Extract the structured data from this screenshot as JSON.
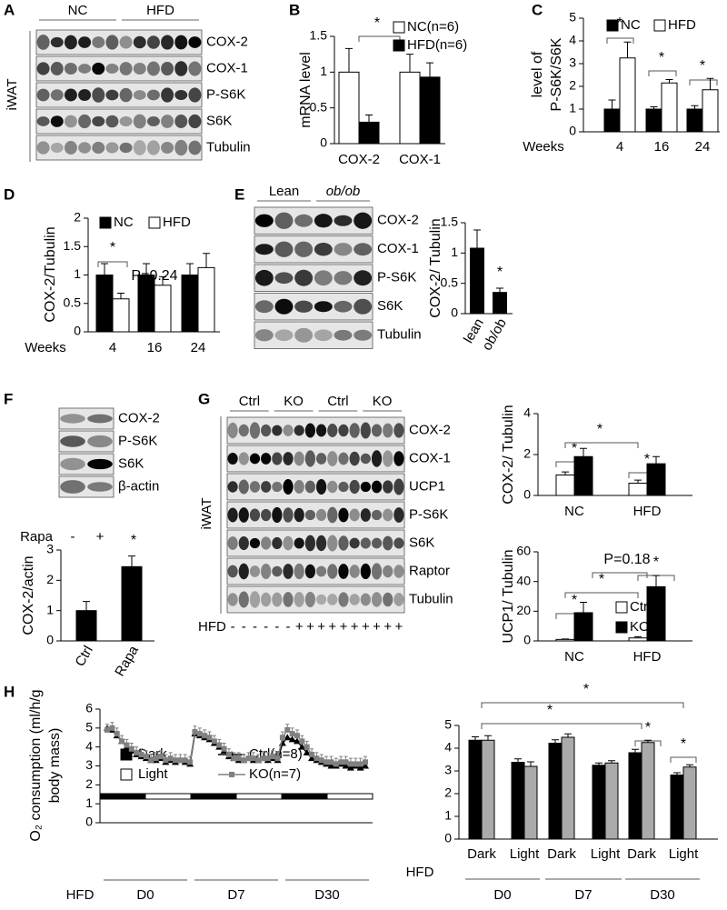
{
  "panel_labels": [
    "A",
    "B",
    "C",
    "D",
    "E",
    "F",
    "G",
    "H"
  ],
  "blots": [
    {
      "group_labels": [
        "NC",
        "HFD"
      ],
      "side_label": "iWAT",
      "rows": [
        "COX-2",
        "COX-1",
        "P-S6K",
        "S6K",
        "Tubulin"
      ]
    },
    {
      "group_labels": [
        "Lean",
        "ob/ob"
      ],
      "rows": [
        "COX-2",
        "COX-1",
        "P-S6K",
        "S6K",
        "Tubulin"
      ]
    },
    {
      "rows": [
        "COX-2",
        "P-S6K",
        "S6K",
        "β-actin"
      ],
      "treatment": "Rapa",
      "lane_signs": [
        "-",
        "+"
      ]
    },
    {
      "group_labels": [
        "Ctrl",
        "KO",
        "Ctrl",
        "KO"
      ],
      "side_label": "iWAT",
      "rows": [
        "COX-2",
        "COX-1",
        "UCP1",
        "P-S6K",
        "S6K",
        "Raptor",
        "Tubulin"
      ],
      "hfd_label": "HFD",
      "hfd_signs": [
        "-",
        "-",
        "-",
        "-",
        "-",
        "-",
        "+",
        "+",
        "+",
        "+",
        "+",
        "+",
        "+",
        "+",
        "+",
        "+"
      ]
    }
  ],
  "chart_data": [
    {
      "type": "bar",
      "ylabel": [
        "mRNA level"
      ],
      "categories": [
        "COX-2",
        "COX-1"
      ],
      "series": [
        {
          "name": "NC(n=6)",
          "color": "#ffffff",
          "values": [
            1.0,
            1.0
          ],
          "errors": [
            0.33,
            0.25
          ]
        },
        {
          "name": "HFD(n=6)",
          "color": "#000000",
          "values": [
            0.3,
            0.93
          ],
          "errors": [
            0.1,
            0.2
          ]
        }
      ],
      "ylim": [
        0,
        1.5
      ],
      "yticks": [
        0,
        0.5,
        1,
        1.5
      ],
      "annotations": [
        "*"
      ]
    },
    {
      "type": "bar",
      "ylabel": [
        "level of",
        "P-S6K/S6K"
      ],
      "xlabel": "Weeks",
      "categories": [
        "4",
        "16",
        "24"
      ],
      "series": [
        {
          "name": "NC",
          "color": "#000000",
          "values": [
            1.0,
            1.0,
            1.0
          ],
          "errors": [
            0.4,
            0.1,
            0.15
          ]
        },
        {
          "name": "HFD",
          "color": "#ffffff",
          "values": [
            3.25,
            2.15,
            1.85
          ],
          "errors": [
            0.7,
            0.15,
            0.5
          ]
        }
      ],
      "ylim": [
        0,
        5
      ],
      "yticks": [
        0,
        1,
        2,
        3,
        4,
        5
      ],
      "annotations": [
        "*",
        "*",
        "*"
      ]
    },
    {
      "type": "bar",
      "ylabel": [
        "COX-2/Tubulin"
      ],
      "xlabel": "Weeks",
      "categories": [
        "4",
        "16",
        "24"
      ],
      "series": [
        {
          "name": "NC",
          "color": "#000000",
          "values": [
            1.0,
            1.0,
            1.0
          ],
          "errors": [
            0.2,
            0.2,
            0.2
          ]
        },
        {
          "name": "HFD",
          "color": "#ffffff",
          "values": [
            0.58,
            0.82,
            1.13
          ],
          "errors": [
            0.1,
            0.15,
            0.25
          ]
        }
      ],
      "ylim": [
        0,
        2
      ],
      "yticks": [
        0,
        0.5,
        1,
        1.5,
        2
      ],
      "annotations": [
        "*",
        "P=0.24"
      ]
    },
    {
      "type": "bar",
      "ylabel": [
        "COX-2/ Tubulin"
      ],
      "categories": [
        "lean",
        "ob/ob"
      ],
      "series": [
        {
          "color": "#000000",
          "values": [
            1.08,
            0.35
          ],
          "errors": [
            0.3,
            0.07
          ]
        }
      ],
      "ylim": [
        0,
        1.5
      ],
      "yticks": [
        0,
        0.5,
        1,
        1.5
      ],
      "annotations": [
        "*"
      ]
    },
    {
      "type": "bar",
      "ylabel": [
        "COX-2/actin"
      ],
      "categories": [
        "Ctrl",
        "Rapa"
      ],
      "series": [
        {
          "color": "#000000",
          "values": [
            1.0,
            2.45
          ],
          "errors": [
            0.3,
            0.35
          ]
        }
      ],
      "ylim": [
        0,
        3
      ],
      "yticks": [
        0,
        1,
        2,
        3
      ],
      "annotations": [
        "*"
      ]
    },
    {
      "type": "bar",
      "ylabel": [
        "COX-2/ Tubulin"
      ],
      "categories": [
        "NC",
        "HFD"
      ],
      "series": [
        {
          "name": "Ctrl",
          "color": "#ffffff",
          "values": [
            1.0,
            0.6
          ],
          "errors": [
            0.15,
            0.15
          ]
        },
        {
          "name": "KO",
          "color": "#000000",
          "values": [
            1.9,
            1.55
          ],
          "errors": [
            0.4,
            0.35
          ]
        }
      ],
      "ylim": [
        0,
        4
      ],
      "yticks": [
        0,
        2,
        4
      ],
      "annotations": [
        "*",
        "*",
        "*"
      ]
    },
    {
      "type": "bar",
      "ylabel": [
        "UCP1/ Tubulin"
      ],
      "categories": [
        "NC",
        "HFD"
      ],
      "series": [
        {
          "name": "Ctrl",
          "color": "#ffffff",
          "values": [
            1.0,
            2.0
          ],
          "errors": [
            0.3,
            0.8
          ]
        },
        {
          "name": "KO",
          "color": "#000000",
          "values": [
            19,
            36.5
          ],
          "errors": [
            7,
            7.5
          ]
        }
      ],
      "ylim": [
        0,
        60
      ],
      "yticks": [
        0,
        20,
        40,
        60
      ],
      "annotations": [
        "P=0.18",
        "*",
        "*",
        "*"
      ]
    },
    {
      "type": "line",
      "ylabel": [
        "O₂ consumption (ml/h/g",
        "body mass)"
      ],
      "periods": [
        "D0",
        "D7",
        "D30"
      ],
      "period_label": "HFD",
      "phase_legend": [
        "Dark",
        "Light"
      ],
      "series": [
        {
          "name": "Ctrl(n=8)",
          "color": "#000000",
          "marker": "triangle",
          "values": [
            5.0,
            4.9,
            4.6,
            4.3,
            4.0,
            3.8,
            3.6,
            3.5,
            3.4,
            3.3,
            3.3,
            3.4,
            3.2,
            3.3,
            3.2,
            3.3,
            3.2,
            3.1,
            4.7,
            4.6,
            4.5,
            4.4,
            4.2,
            4.0,
            3.8,
            3.5,
            3.4,
            3.3,
            3.3,
            3.4,
            3.3,
            3.3,
            3.4,
            3.3,
            3.4,
            3.3,
            4.2,
            4.5,
            4.4,
            4.3,
            4.0,
            3.7,
            3.4,
            3.3,
            3.2,
            3.1,
            3.0,
            3.0,
            3.1,
            3.0,
            2.9,
            3.0,
            2.9,
            3.0
          ]
        },
        {
          "name": "KO(n=7)",
          "color": "#808080",
          "marker": "square",
          "values": [
            4.9,
            5.0,
            4.7,
            4.3,
            4.1,
            3.9,
            3.7,
            3.6,
            3.5,
            3.3,
            3.4,
            3.5,
            3.3,
            3.4,
            3.3,
            3.3,
            3.3,
            3.2,
            4.8,
            4.7,
            4.6,
            4.5,
            4.3,
            4.1,
            3.9,
            3.6,
            3.4,
            3.4,
            3.3,
            3.4,
            3.4,
            3.3,
            3.4,
            3.4,
            3.5,
            3.4,
            4.5,
            4.9,
            4.7,
            4.6,
            4.3,
            4.0,
            3.6,
            3.4,
            3.3,
            3.2,
            3.2,
            3.1,
            3.2,
            3.2,
            3.1,
            3.1,
            3.1,
            3.2
          ],
          "errors": [
            0.3,
            0.3,
            0.3,
            0.3,
            0.3,
            0.3,
            0.3,
            0.3,
            0.3,
            0.3,
            0.3,
            0.3,
            0.3,
            0.3,
            0.3,
            0.3,
            0.3,
            0.3,
            0.3,
            0.3,
            0.3,
            0.3,
            0.3,
            0.3,
            0.3,
            0.3,
            0.3,
            0.3,
            0.3,
            0.3,
            0.3,
            0.3,
            0.3,
            0.3,
            0.3,
            0.3,
            0.3,
            0.3,
            0.3,
            0.3,
            0.3,
            0.3,
            0.3,
            0.3,
            0.3,
            0.3,
            0.3,
            0.3,
            0.3,
            0.3,
            0.3,
            0.3,
            0.3,
            0.3
          ]
        }
      ],
      "ylim": [
        0,
        6
      ],
      "yticks": [
        0,
        1,
        2,
        3,
        4,
        5,
        6
      ]
    },
    {
      "type": "bar",
      "categories": [
        "Dark",
        "Light",
        "Dark",
        "Light",
        "Dark",
        "Light"
      ],
      "groups": [
        "D0",
        "D7",
        "D30"
      ],
      "group_label": "HFD",
      "series": [
        {
          "color": "#000000",
          "values": [
            4.35,
            3.38,
            4.22,
            3.25,
            3.8,
            2.82
          ],
          "errors": [
            0.15,
            0.15,
            0.15,
            0.1,
            0.15,
            0.1
          ]
        },
        {
          "color": "#aaaaaa",
          "values": [
            4.35,
            3.2,
            4.48,
            3.35,
            4.25,
            3.17
          ],
          "errors": [
            0.2,
            0.2,
            0.15,
            0.1,
            0.1,
            0.1
          ]
        }
      ],
      "ylim": [
        0,
        5
      ],
      "yticks": [
        0,
        1,
        2,
        3,
        4,
        5
      ],
      "annotations": [
        "*",
        "*",
        "*",
        "*"
      ]
    }
  ]
}
